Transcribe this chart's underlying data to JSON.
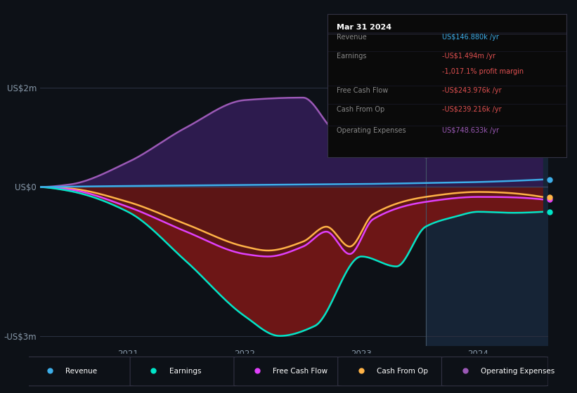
{
  "background_color": "#0d1117",
  "plot_bg_color": "#0d1117",
  "ylim": [
    -3200000,
    2500000
  ],
  "xlim_start": 2020.25,
  "xlim_end": 2024.6,
  "x_ticks": [
    2021,
    2022,
    2023,
    2024
  ],
  "y_ticks_vals": [
    2000000,
    0,
    -3000000
  ],
  "y_ticks_labels": [
    "US$2m",
    "US$0",
    "-US$3m"
  ],
  "highlight_x_start": 2023.55,
  "series_colors": {
    "revenue": "#3daee9",
    "earnings": "#00e5c8",
    "free_cash_flow": "#e040fb",
    "cash_from_op": "#ffb347",
    "operating_expenses": "#9b59b6"
  },
  "legend_labels": [
    "Revenue",
    "Earnings",
    "Free Cash Flow",
    "Cash From Op",
    "Operating Expenses"
  ],
  "tooltip": {
    "title": "Mar 31 2024",
    "rows": [
      {
        "label": "Revenue",
        "value": "US$146.880k /yr",
        "label_color": "#888888",
        "value_color": "#3daee9"
      },
      {
        "label": "Earnings",
        "value": "-US$1.494m /yr",
        "label_color": "#888888",
        "value_color": "#e05050"
      },
      {
        "label": "",
        "value": "-1,017.1% profit margin",
        "label_color": "#888888",
        "value_color": "#e05050"
      },
      {
        "label": "Free Cash Flow",
        "value": "-US$243.976k /yr",
        "label_color": "#888888",
        "value_color": "#e05050"
      },
      {
        "label": "Cash From Op",
        "value": "-US$239.216k /yr",
        "label_color": "#888888",
        "value_color": "#e05050"
      },
      {
        "label": "Operating Expenses",
        "value": "US$748.633k /yr",
        "label_color": "#888888",
        "value_color": "#9b59b6"
      }
    ]
  }
}
